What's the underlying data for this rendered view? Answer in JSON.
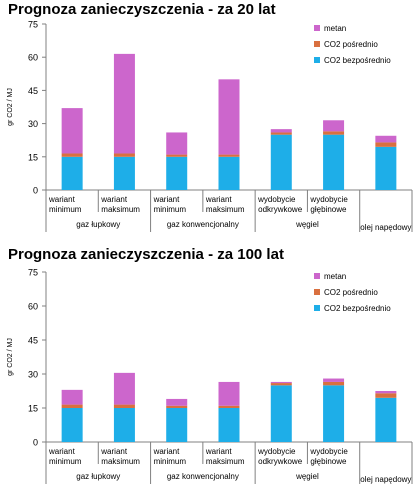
{
  "colors": {
    "metan": "#cc66cc",
    "co2_posrednio": "#d9703f",
    "co2_bezposrednio": "#1eaee8",
    "axis": "#808080"
  },
  "chart_data": [
    {
      "type": "bar",
      "stacked": true,
      "title": "Prognoza zanieczyszczenia - za 20 lat",
      "ylabel": "gr CO2 / MJ",
      "ylim": [
        0,
        75
      ],
      "yticks": [
        0,
        15,
        30,
        45,
        60,
        75
      ],
      "legend_position": "top-right",
      "categories": [
        [
          "wariant",
          "minimum"
        ],
        [
          "wariant",
          "maksimum"
        ],
        [
          "wariant",
          "minimum"
        ],
        [
          "wariant",
          "maksimum"
        ],
        [
          "wydobycie",
          "odkrywkowe"
        ],
        [
          "wydobycie",
          "głębinowe"
        ],
        [
          "",
          ""
        ]
      ],
      "groups": [
        "gaz łupkowy",
        "gaz konwencjonalny",
        "węgiel",
        "olej napędowy"
      ],
      "series": [
        {
          "name": "CO2 bezpośrednio",
          "color": "#1eaee8",
          "values": [
            15,
            15,
            15,
            15,
            25,
            25,
            19.5
          ]
        },
        {
          "name": "CO2 pośrednio",
          "color": "#d9703f",
          "values": [
            1.5,
            1.5,
            1,
            1,
            1,
            1.5,
            2
          ]
        },
        {
          "name": "metan",
          "color": "#cc66cc",
          "values": [
            20.5,
            45,
            10,
            34,
            1.5,
            5,
            3
          ]
        }
      ]
    },
    {
      "type": "bar",
      "stacked": true,
      "title": "Prognoza zanieczyszczenia - za 100 lat",
      "ylabel": "gr CO2 / MJ",
      "ylim": [
        0,
        75
      ],
      "yticks": [
        0,
        15,
        30,
        45,
        60,
        75
      ],
      "legend_position": "top-right",
      "categories": [
        [
          "wariant",
          "minimum"
        ],
        [
          "wariant",
          "maksimum"
        ],
        [
          "wariant",
          "minimum"
        ],
        [
          "wariant",
          "maksimum"
        ],
        [
          "wydobycie",
          "odkrywkowe"
        ],
        [
          "wydobycie",
          "głębinowe"
        ],
        [
          "",
          ""
        ]
      ],
      "groups": [
        "gaz łupkowy",
        "gaz konwencjonalny",
        "węgiel",
        "olej napędowy"
      ],
      "series": [
        {
          "name": "CO2 bezpośrednio",
          "color": "#1eaee8",
          "values": [
            15,
            15,
            15,
            15,
            25,
            25,
            19.5
          ]
        },
        {
          "name": "CO2 pośrednio",
          "color": "#d9703f",
          "values": [
            1.5,
            1.5,
            1,
            1,
            1,
            1.5,
            2
          ]
        },
        {
          "name": "metan",
          "color": "#cc66cc",
          "values": [
            6.5,
            14,
            3,
            10.5,
            0.5,
            1.5,
            1
          ]
        }
      ]
    }
  ]
}
